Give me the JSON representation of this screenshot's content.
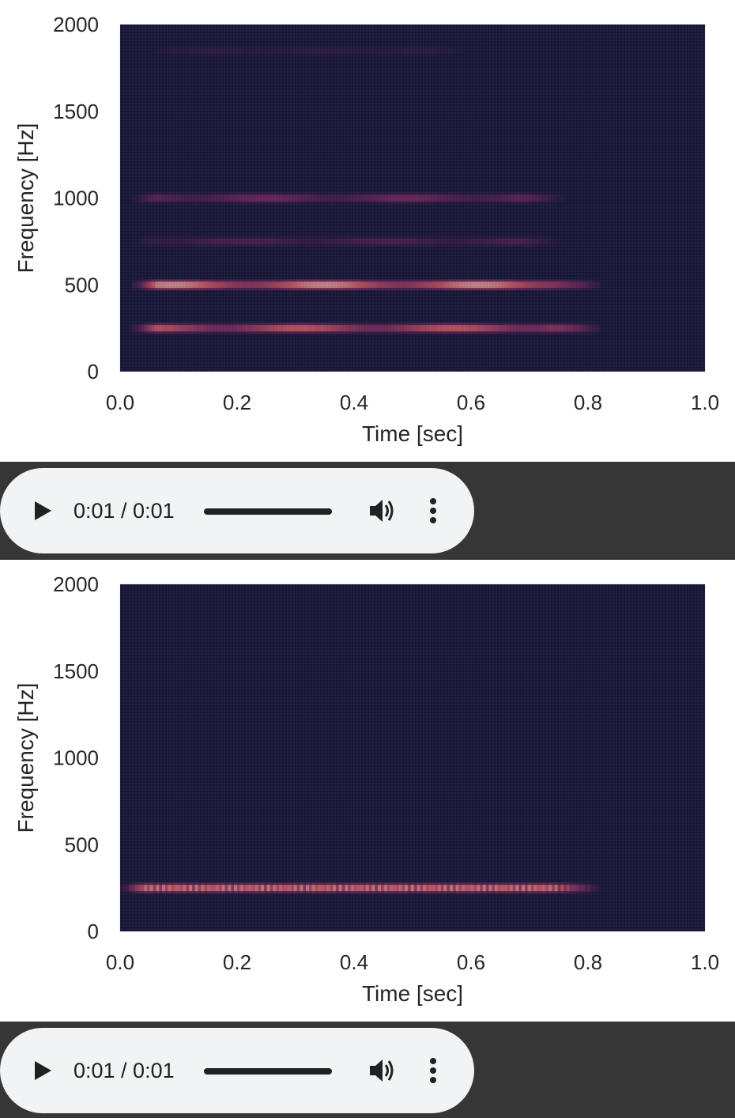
{
  "chart_data": [
    {
      "type": "heatmap",
      "title": "",
      "xlabel": "Time [sec]",
      "ylabel": "Frequency [Hz]",
      "xlim": [
        0.0,
        1.0
      ],
      "ylim": [
        0,
        2000
      ],
      "xticks": [
        "0.0",
        "0.2",
        "0.4",
        "0.6",
        "0.8",
        "1.0"
      ],
      "yticks": [
        "0",
        "500",
        "1000",
        "1500",
        "2000"
      ],
      "grid": true,
      "colors": {
        "background": "#171533",
        "mid": "#8a2a62",
        "high": "#f0784e",
        "peak": "#fbeac4"
      },
      "bands": [
        {
          "freq_hz": 500,
          "t_start": 0.02,
          "t_end": 0.82,
          "intensity": 0.95
        },
        {
          "freq_hz": 250,
          "t_start": 0.02,
          "t_end": 0.82,
          "intensity": 0.75
        },
        {
          "freq_hz": 1000,
          "t_start": 0.02,
          "t_end": 0.76,
          "intensity": 0.35
        },
        {
          "freq_hz": 750,
          "t_start": 0.02,
          "t_end": 0.76,
          "intensity": 0.2
        },
        {
          "freq_hz": 1850,
          "t_start": 0.05,
          "t_end": 0.6,
          "intensity": 0.08
        }
      ]
    },
    {
      "type": "heatmap",
      "title": "",
      "xlabel": "Time [sec]",
      "ylabel": "Frequency [Hz]",
      "xlim": [
        0.0,
        1.0
      ],
      "ylim": [
        0,
        2000
      ],
      "xticks": [
        "0.0",
        "0.2",
        "0.4",
        "0.6",
        "0.8",
        "1.0"
      ],
      "yticks": [
        "0",
        "500",
        "1000",
        "1500",
        "2000"
      ],
      "grid": true,
      "colors": {
        "background": "#171533",
        "mid": "#8a2a62",
        "high": "#f0784e",
        "peak": "#fbeac4"
      },
      "bands": [
        {
          "freq_hz": 250,
          "t_start": 0.0,
          "t_end": 0.82,
          "intensity": 0.9,
          "speckled": true
        }
      ]
    }
  ],
  "players": [
    {
      "time_text": "0:01 / 0:01",
      "progress": 1.0
    },
    {
      "time_text": "0:01 / 0:01",
      "progress": 1.0
    }
  ]
}
